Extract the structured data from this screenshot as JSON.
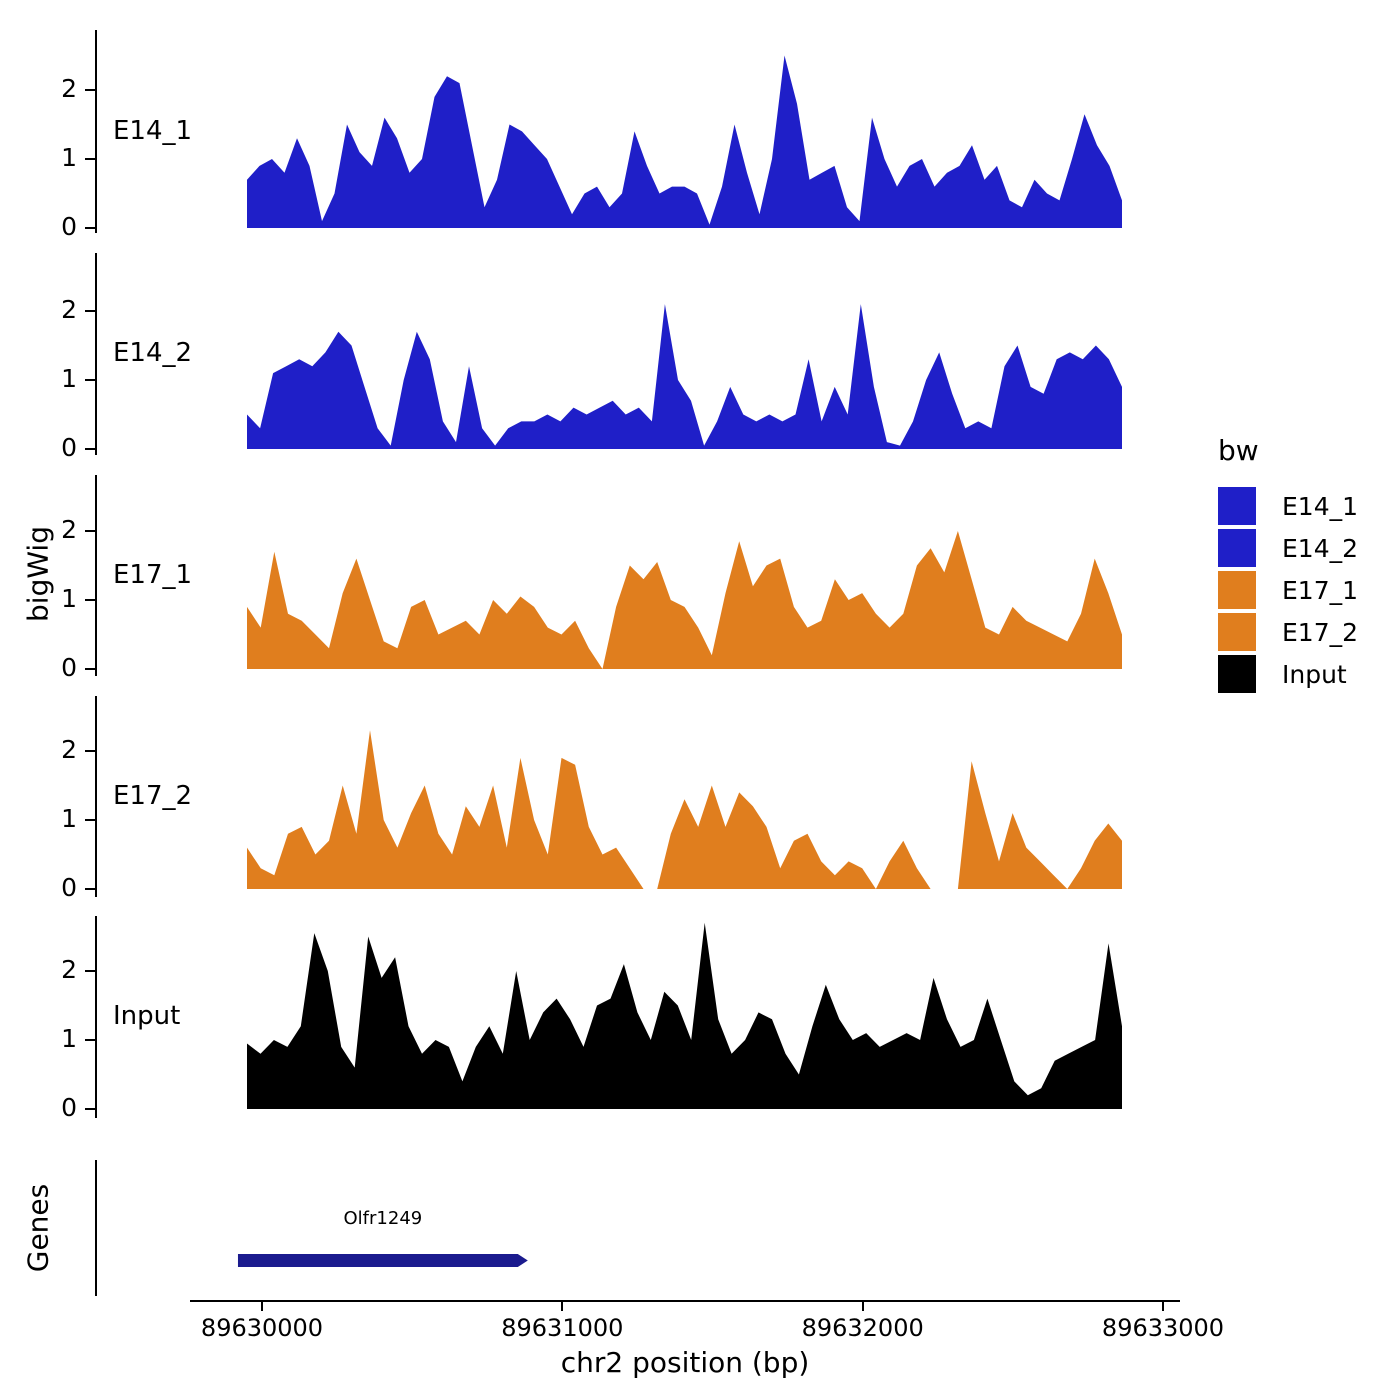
{
  "figure": {
    "y_axis_title": "bigWig",
    "genes_panel_title": "Genes",
    "x_axis_title": "chr2 position (bp)"
  },
  "axes": {
    "y_ticks": [
      "0",
      "1",
      "2"
    ],
    "x_ticks": [
      "89630000",
      "89631000",
      "89632000",
      "89633000"
    ]
  },
  "legend": {
    "title": "bw"
  },
  "chart_data": {
    "type": "area",
    "title": "",
    "xlabel": "chr2 position (bp)",
    "ylabel": "bigWig",
    "x_range_bp": [
      89629945,
      89632855
    ],
    "x_axis_ticks_bp": [
      89630000,
      89631000,
      89632000,
      89633000
    ],
    "y_ticks": [
      0,
      1,
      2
    ],
    "ylim_per_track": [
      0,
      2.8
    ],
    "grid": false,
    "legend_position": "right",
    "tracks": [
      {
        "name": "E14_1",
        "color": "#1F1FC8",
        "values": [
          0.7,
          0.9,
          1.0,
          0.8,
          1.3,
          0.9,
          0.1,
          0.5,
          1.5,
          1.1,
          0.9,
          1.6,
          1.3,
          0.8,
          1.0,
          1.9,
          2.2,
          2.1,
          1.2,
          0.3,
          0.7,
          1.5,
          1.4,
          1.2,
          1.0,
          0.6,
          0.2,
          0.5,
          0.6,
          0.3,
          0.5,
          1.4,
          0.9,
          0.5,
          0.6,
          0.6,
          0.5,
          0.05,
          0.6,
          1.5,
          0.8,
          0.2,
          1.0,
          2.5,
          1.8,
          0.7,
          0.8,
          0.9,
          0.3,
          0.1,
          1.6,
          1.0,
          0.6,
          0.9,
          1.0,
          0.6,
          0.8,
          0.9,
          1.2,
          0.7,
          0.9,
          0.4,
          0.3,
          0.7,
          0.5,
          0.4,
          1.0,
          1.65,
          1.2,
          0.9,
          0.4
        ]
      },
      {
        "name": "E14_2",
        "color": "#1F1FC8",
        "values": [
          0.5,
          0.3,
          1.1,
          1.2,
          1.3,
          1.2,
          1.4,
          1.7,
          1.5,
          0.9,
          0.3,
          0.05,
          1.0,
          1.7,
          1.3,
          0.4,
          0.1,
          1.2,
          0.3,
          0.05,
          0.3,
          0.4,
          0.4,
          0.5,
          0.4,
          0.6,
          0.5,
          0.6,
          0.7,
          0.5,
          0.6,
          0.4,
          2.1,
          1.0,
          0.7,
          0.05,
          0.4,
          0.9,
          0.5,
          0.4,
          0.5,
          0.4,
          0.5,
          1.3,
          0.4,
          0.9,
          0.5,
          2.1,
          0.9,
          0.1,
          0.05,
          0.4,
          1.0,
          1.4,
          0.8,
          0.3,
          0.4,
          0.3,
          1.2,
          1.5,
          0.9,
          0.8,
          1.3,
          1.4,
          1.3,
          1.5,
          1.3,
          0.9
        ]
      },
      {
        "name": "E17_1",
        "color": "#E07E1E",
        "values": [
          0.9,
          0.6,
          1.7,
          0.8,
          0.7,
          0.5,
          0.3,
          1.1,
          1.6,
          1.0,
          0.4,
          0.3,
          0.9,
          1.0,
          0.5,
          0.6,
          0.7,
          0.5,
          1.0,
          0.8,
          1.05,
          0.9,
          0.6,
          0.5,
          0.7,
          0.3,
          0,
          0.9,
          1.5,
          1.3,
          1.55,
          1.0,
          0.9,
          0.6,
          0.2,
          1.1,
          1.85,
          1.2,
          1.5,
          1.6,
          0.9,
          0.6,
          0.7,
          1.3,
          1.0,
          1.1,
          0.8,
          0.6,
          0.8,
          1.5,
          1.75,
          1.4,
          2.0,
          1.3,
          0.6,
          0.5,
          0.9,
          0.7,
          0.6,
          0.5,
          0.4,
          0.8,
          1.6,
          1.1,
          0.5
        ]
      },
      {
        "name": "E17_2",
        "color": "#E07E1E",
        "values": [
          0.6,
          0.3,
          0.2,
          0.8,
          0.9,
          0.5,
          0.7,
          1.5,
          0.8,
          2.3,
          1.0,
          0.6,
          1.1,
          1.5,
          0.8,
          0.5,
          1.2,
          0.9,
          1.5,
          0.6,
          1.9,
          1.0,
          0.5,
          1.9,
          1.8,
          0.9,
          0.5,
          0.6,
          0.3,
          0,
          0,
          0.8,
          1.3,
          0.9,
          1.5,
          0.9,
          1.4,
          1.2,
          0.9,
          0.3,
          0.7,
          0.8,
          0.4,
          0.2,
          0.4,
          0.3,
          0,
          0.4,
          0.7,
          0.3,
          0,
          0,
          0,
          1.85,
          1.1,
          0.4,
          1.1,
          0.6,
          0.4,
          0.2,
          0,
          0.3,
          0.7,
          0.95,
          0.7
        ]
      },
      {
        "name": "Input",
        "color": "#000000",
        "values": [
          0.95,
          0.8,
          1.0,
          0.9,
          1.2,
          2.55,
          2.0,
          0.9,
          0.6,
          2.5,
          1.9,
          2.2,
          1.2,
          0.8,
          1.0,
          0.9,
          0.4,
          0.9,
          1.2,
          0.8,
          2.0,
          1.0,
          1.4,
          1.6,
          1.3,
          0.9,
          1.5,
          1.6,
          2.1,
          1.4,
          1.0,
          1.7,
          1.5,
          1.0,
          2.7,
          1.3,
          0.8,
          1.0,
          1.4,
          1.3,
          0.8,
          0.5,
          1.2,
          1.8,
          1.3,
          1.0,
          1.1,
          0.9,
          1.0,
          1.1,
          1.0,
          1.9,
          1.3,
          0.9,
          1.0,
          1.6,
          1.0,
          0.4,
          0.2,
          0.3,
          0.7,
          0.8,
          0.9,
          1.0,
          2.4,
          1.2
        ]
      }
    ],
    "genes": [
      {
        "label": "Olfr1249",
        "start_bp": 89629920,
        "end_bp": 89630885,
        "color": "#1B1B8E"
      }
    ]
  }
}
